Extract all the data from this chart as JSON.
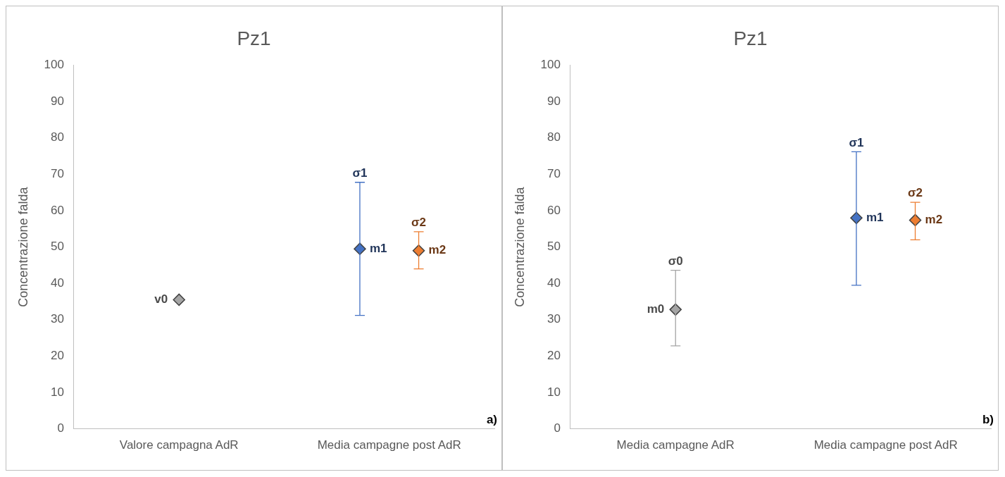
{
  "chart_data": [
    {
      "type": "scatter",
      "title": "Pz1",
      "ylabel": "Concentrazione falda",
      "categories": [
        "Valore campagna AdR",
        "Media campagne post AdR"
      ],
      "marker": "diamond",
      "grid": false,
      "legend": false,
      "ylim": [
        0,
        100
      ],
      "yticks": [
        0,
        10,
        20,
        30,
        40,
        50,
        60,
        70,
        80,
        90,
        100
      ],
      "series": [
        {
          "color": "#a5a5a5",
          "values": [
            35.5,
            null
          ],
          "value_labels": [
            "v0",
            null
          ]
        },
        {
          "color": "#4472c4",
          "values": [
            null,
            49.5
          ],
          "errors": [
            null,
            [
              31.2,
              67.8
            ]
          ],
          "value_labels": [
            null,
            "m1"
          ]
        },
        {
          "color": "#ed7d31",
          "values": [
            null,
            49
          ],
          "errors": [
            null,
            [
              44,
              54.2
            ]
          ],
          "value_labels": [
            null,
            "m2"
          ]
        }
      ],
      "annotations": [
        "σ1",
        "σ2",
        "a)"
      ]
    },
    {
      "type": "scatter",
      "title": "Pz1",
      "ylabel": "Concentrazione falda",
      "categories": [
        "Media campagne AdR",
        "Media campagne post AdR"
      ],
      "marker": "diamond",
      "grid": false,
      "legend": false,
      "ylim": [
        0,
        100
      ],
      "yticks": [
        0,
        10,
        20,
        30,
        40,
        50,
        60,
        70,
        80,
        90,
        100
      ],
      "series": [
        {
          "color": "#a5a5a5",
          "values": [
            32.8,
            null
          ],
          "errors": [
            [
              22.8,
              43.6
            ],
            null
          ],
          "value_labels": [
            "m0",
            null
          ]
        },
        {
          "color": "#4472c4",
          "values": [
            null,
            58
          ],
          "errors": [
            null,
            [
              39.5,
              76.2
            ]
          ],
          "value_labels": [
            null,
            "m1"
          ]
        },
        {
          "color": "#ed7d31",
          "values": [
            null,
            57.4
          ],
          "errors": [
            null,
            [
              52,
              62.3
            ]
          ],
          "value_labels": [
            null,
            "m2"
          ]
        }
      ],
      "annotations": [
        "σ0",
        "σ1",
        "σ2",
        "b)"
      ]
    }
  ]
}
